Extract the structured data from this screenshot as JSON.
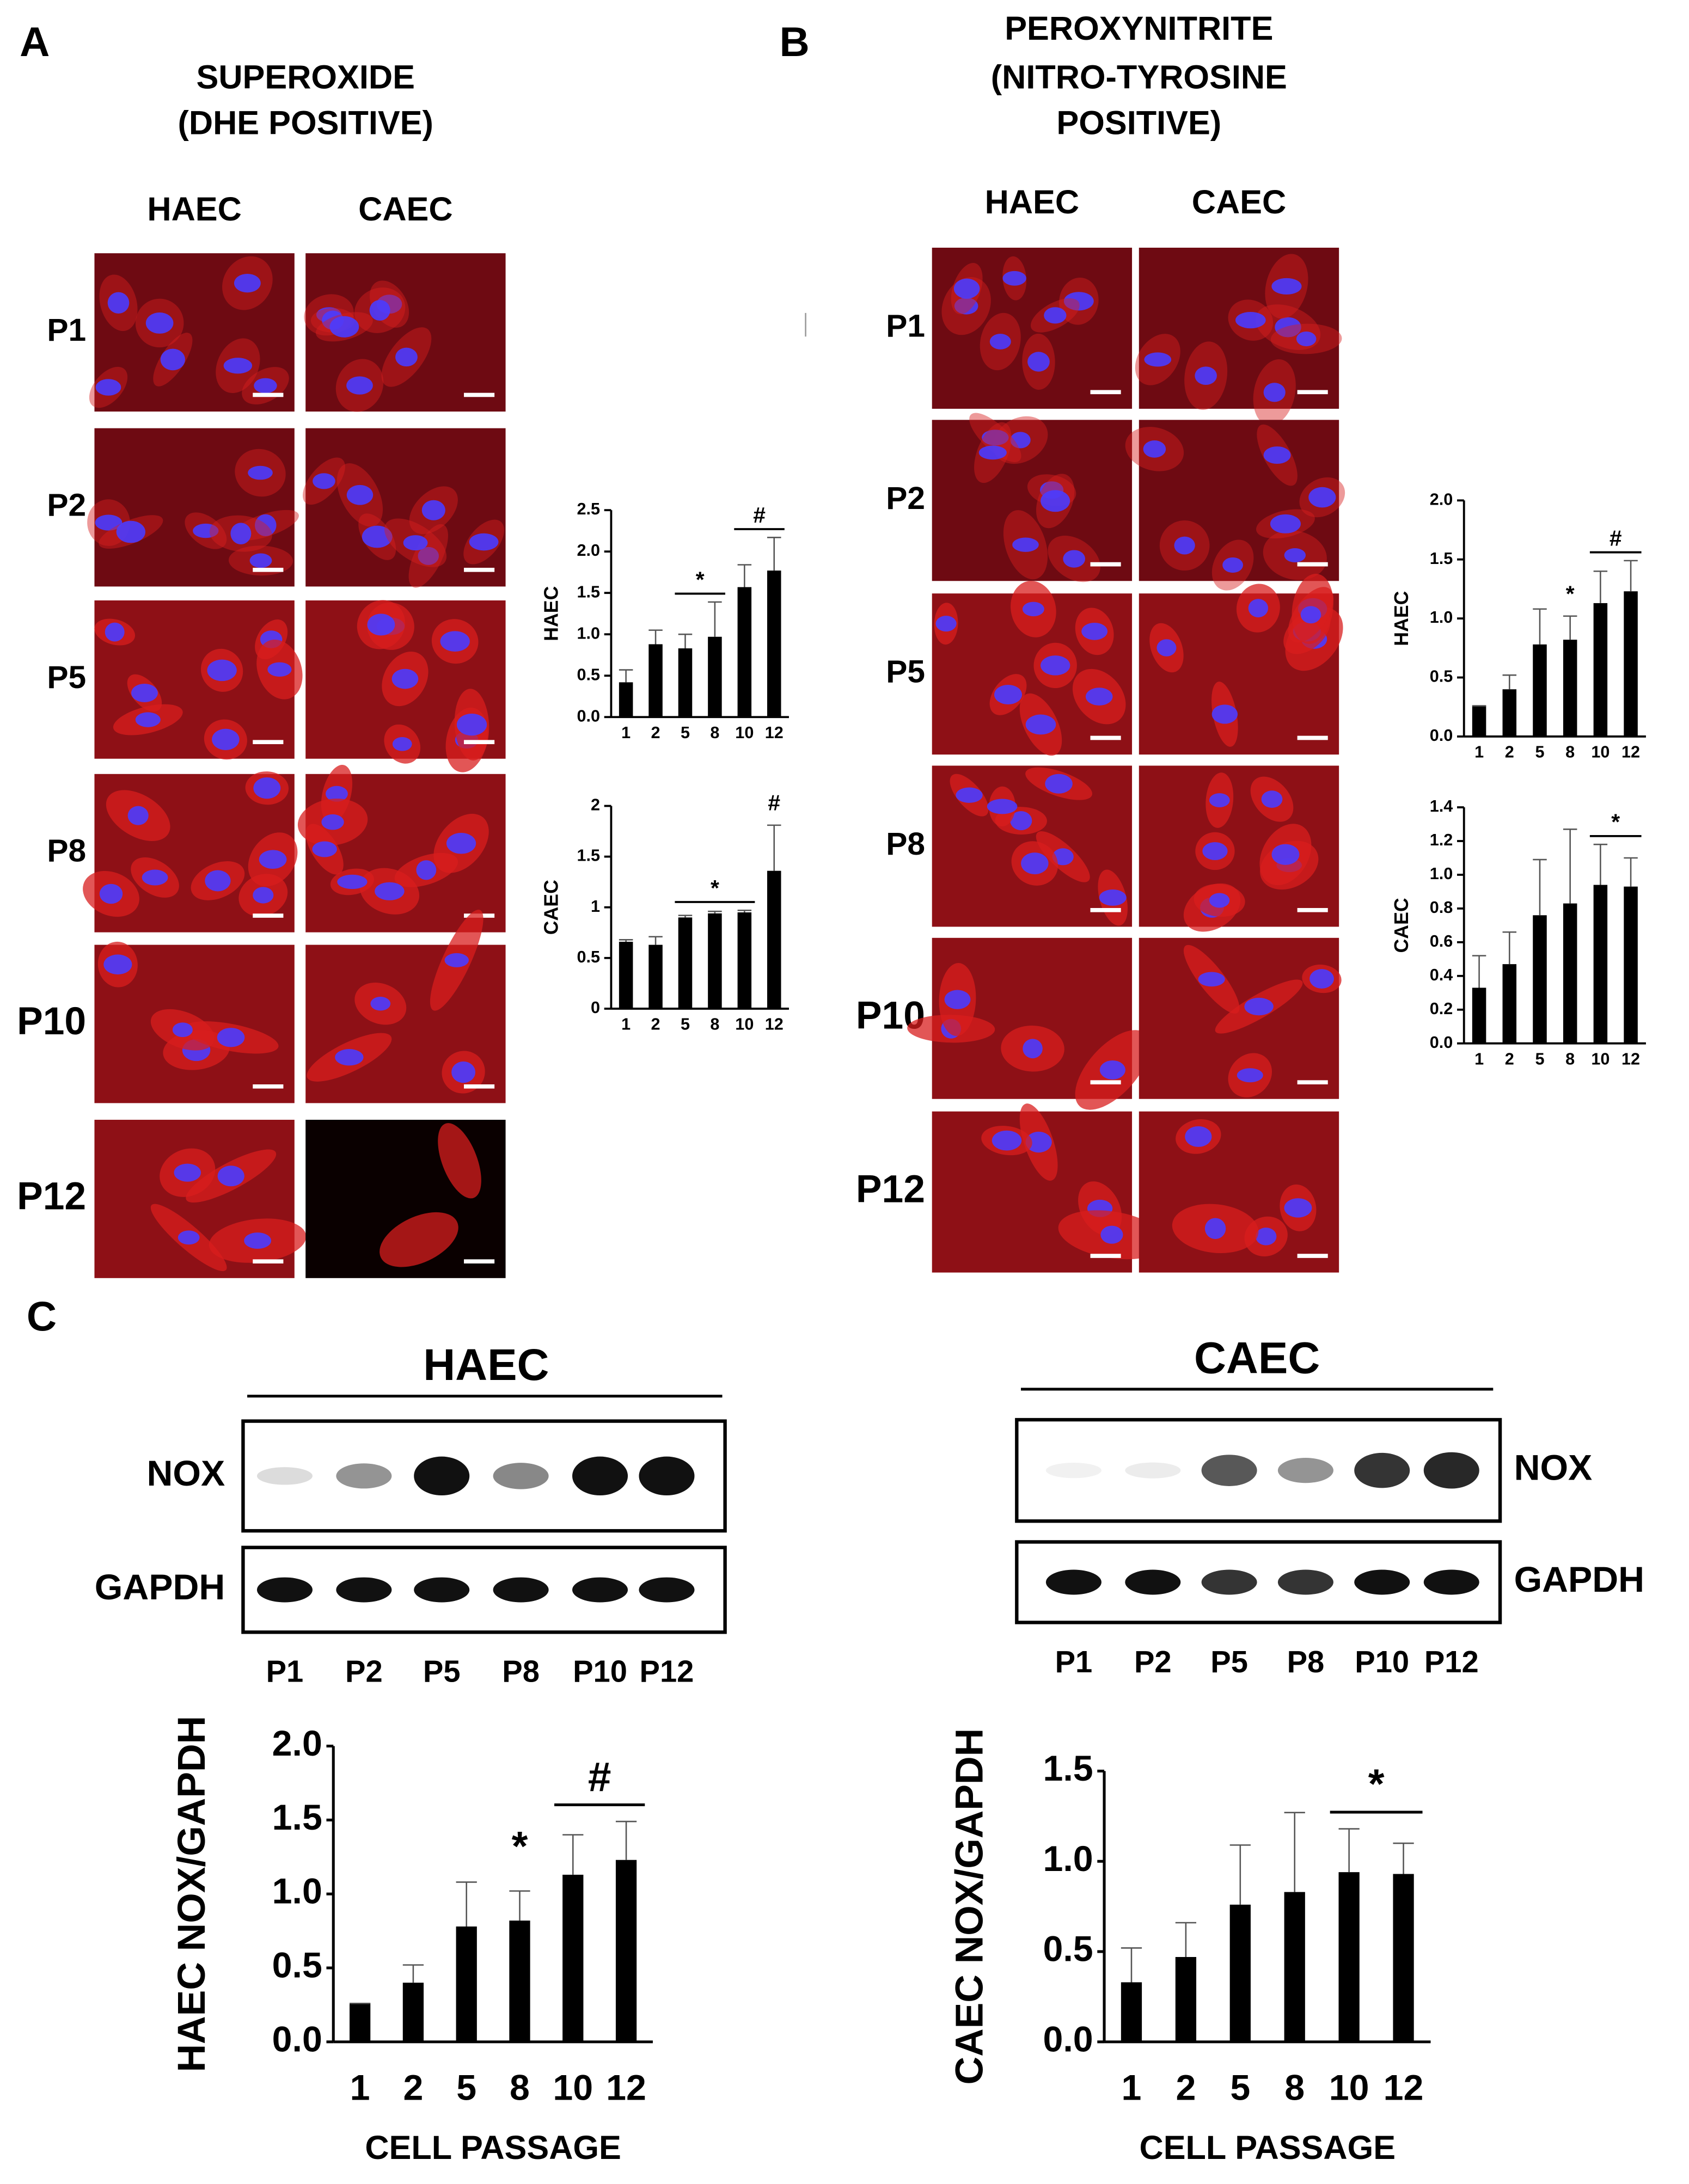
{
  "panel_a": {
    "label": "A",
    "title": [
      "SUPEROXIDE",
      "(DHE POSITIVE)"
    ],
    "columns": [
      "HAEC",
      "CAEC"
    ],
    "rows": [
      "P1",
      "P2",
      "P5",
      "P8",
      "P10",
      "P12"
    ]
  },
  "panel_b": {
    "label": "B",
    "title": [
      "PEROXYNITRITE",
      "(NITRO-TYROSINE",
      "POSITIVE)"
    ],
    "columns": [
      "HAEC",
      "CAEC"
    ],
    "rows": [
      "P1",
      "P2",
      "P5",
      "P8",
      "P10",
      "P12"
    ]
  },
  "panel_c": {
    "label": "C",
    "blots": [
      {
        "title": "HAEC",
        "rows": [
          "NOX",
          "GAPDH"
        ],
        "lanes": [
          "P1",
          "P2",
          "P5",
          "P8",
          "P10",
          "P12"
        ]
      },
      {
        "title": "CAEC",
        "rows": [
          "NOX",
          "GAPDH"
        ],
        "lanes": [
          "P1",
          "P2",
          "P5",
          "P8",
          "P10",
          "P12"
        ]
      }
    ]
  },
  "chart_data": [
    {
      "type": "bar",
      "y_label": "HAEC",
      "categories": [
        "1",
        "2",
        "5",
        "8",
        "10",
        "12"
      ],
      "values": [
        0.42,
        0.88,
        0.83,
        0.97,
        1.57,
        1.77
      ],
      "errors": [
        0.15,
        0.17,
        0.17,
        0.42,
        0.27,
        0.4
      ],
      "color": "#000000",
      "ylim": [
        0,
        2.5
      ],
      "yticks": [
        {
          "value": 0,
          "label": "0.0"
        },
        0.5,
        {
          "value": 1,
          "label": "1.0"
        },
        1.5,
        {
          "value": 2,
          "label": "2.0"
        },
        2.5
      ],
      "annotations": [
        "*",
        "#"
      ]
    },
    {
      "type": "bar",
      "y_label": "CAEC",
      "categories": [
        "1",
        "2",
        "5",
        "8",
        "10",
        "12"
      ],
      "values": [
        0.66,
        0.63,
        0.9,
        0.94,
        0.95,
        1.36
      ],
      "errors": [
        0.02,
        0.08,
        0.02,
        0.02,
        0.02,
        0.45
      ],
      "color": "#000000",
      "ylim": [
        0,
        2
      ],
      "yticks": [
        0,
        0.5,
        1,
        1.5,
        2
      ],
      "annotations": [
        "*",
        "#"
      ]
    },
    {
      "type": "bar",
      "y_label": "HAEC",
      "categories": [
        "1",
        "2",
        "5",
        "8",
        "10",
        "12"
      ],
      "values": [
        0.26,
        0.4,
        0.78,
        0.82,
        1.13,
        1.23
      ],
      "errors": [
        0,
        0.12,
        0.3,
        0.2,
        0.27,
        0.26
      ],
      "color": "#000000",
      "ylim": [
        0,
        2
      ],
      "yticks": [
        {
          "value": 0,
          "label": "0.0"
        },
        0.5,
        {
          "value": 1,
          "label": "1.0"
        },
        1.5,
        {
          "value": 2,
          "label": "2.0"
        }
      ],
      "annotations": [
        "*",
        "#"
      ]
    },
    {
      "type": "bar",
      "y_label": "CAEC",
      "categories": [
        "1",
        "2",
        "5",
        "8",
        "10",
        "12"
      ],
      "values": [
        0.33,
        0.47,
        0.76,
        0.83,
        0.94,
        0.93
      ],
      "errors": [
        0.19,
        0.19,
        0.33,
        0.44,
        0.24,
        0.17
      ],
      "color": "#000000",
      "ylim": [
        0,
        1.4
      ],
      "yticks": [
        {
          "value": 0,
          "label": "0.0"
        },
        0.2,
        0.4,
        0.6,
        0.8,
        {
          "value": 1,
          "label": "1.0"
        },
        1.2,
        1.4
      ],
      "annotations": [
        "*"
      ]
    },
    {
      "type": "bar",
      "y_label": "HAEC NOX/GAPDH",
      "x_label": "CELL PASSAGE",
      "categories": [
        "1",
        "2",
        "5",
        "8",
        "10",
        "12"
      ],
      "values": [
        0.26,
        0.4,
        0.78,
        0.82,
        1.13,
        1.23
      ],
      "errors": [
        0,
        0.12,
        0.3,
        0.2,
        0.27,
        0.26
      ],
      "color": "#000000",
      "ylim": [
        0,
        2
      ],
      "yticks": [
        {
          "value": 0,
          "label": "0.0"
        },
        0.5,
        {
          "value": 1,
          "label": "1.0"
        },
        1.5,
        {
          "value": 2,
          "label": "2.0"
        }
      ],
      "annotations": [
        "*",
        "#"
      ]
    },
    {
      "type": "bar",
      "y_label": "CAEC NOX/GAPDH",
      "x_label": "CELL PASSAGE",
      "categories": [
        "1",
        "2",
        "5",
        "8",
        "10",
        "12"
      ],
      "values": [
        0.33,
        0.47,
        0.76,
        0.83,
        0.94,
        0.93
      ],
      "errors": [
        0.19,
        0.19,
        0.33,
        0.44,
        0.24,
        0.17
      ],
      "color": "#000000",
      "ylim": [
        0,
        1.5
      ],
      "yticks": [
        {
          "value": 0,
          "label": "0.0"
        },
        0.5,
        {
          "value": 1,
          "label": "1.0"
        },
        1.5
      ],
      "annotations": [
        "*"
      ]
    }
  ]
}
